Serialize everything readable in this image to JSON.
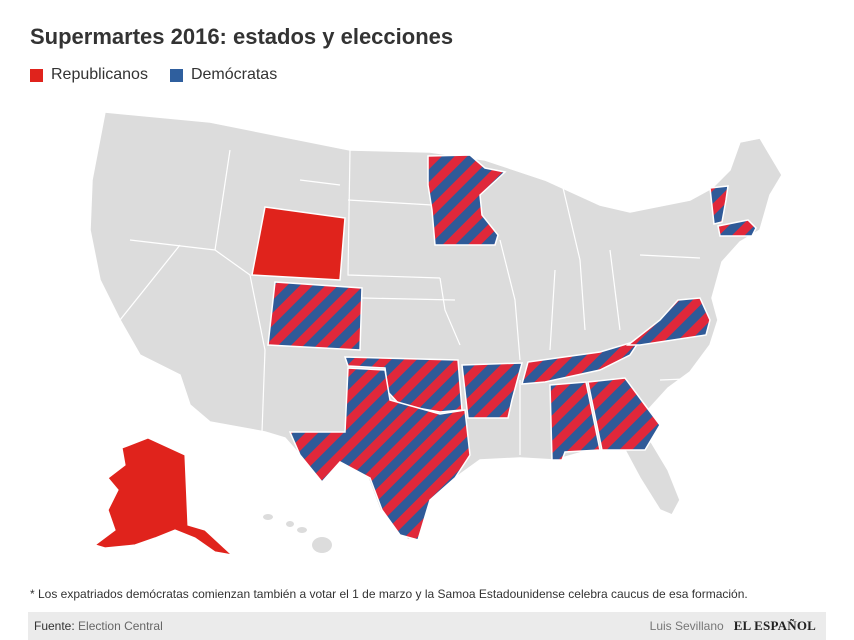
{
  "title": "Supermartes 2016: estados y elecciones",
  "legend": [
    {
      "label": "Republicanos",
      "color": "#e0231c"
    },
    {
      "label": "Demócratas",
      "color": "#2f5f9e"
    }
  ],
  "map": {
    "base_color": "#dcdcdc",
    "border_color": "#ffffff",
    "states_republican_only": [
      "Wyoming",
      "Alaska"
    ],
    "states_both_parties": [
      "Minnesota",
      "Colorado",
      "Oklahoma",
      "Texas",
      "Arkansas",
      "Tennessee",
      "Alabama",
      "Georgia",
      "Virginia",
      "Vermont",
      "Massachusetts"
    ],
    "states_democrat_only": [
      "American Samoa"
    ]
  },
  "footnote": "* Los expatriados demócratas comienzan también a votar el 1 de marzo y la Samoa Estadounidense celebra caucus de esa formación.",
  "footer": {
    "source_label": "Fuente:",
    "source_value": "Election Central",
    "author": "Luis Sevillano",
    "brand": "EL ESPAÑOL"
  }
}
